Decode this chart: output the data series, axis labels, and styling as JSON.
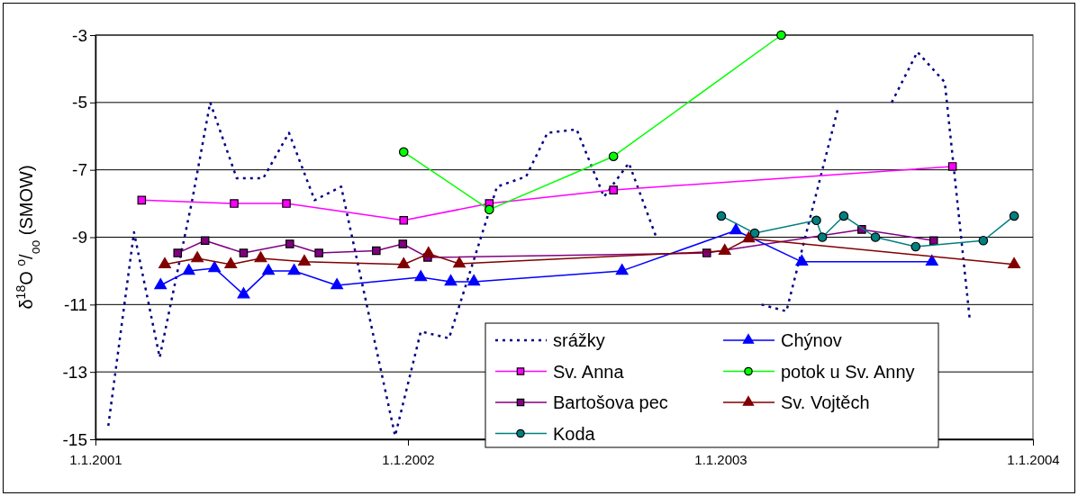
{
  "chart_data": {
    "type": "line",
    "ylabel": "δ$^{18}$O $^{o}$/$_{oo}$ (SMOW)",
    "xlim": [
      "2001-01-01",
      "2004-01-01"
    ],
    "xticks": [
      {
        "value": "2001-01-01",
        "label": "1.1.2001"
      },
      {
        "value": "2002-01-01",
        "label": "1.1.2002"
      },
      {
        "value": "2003-01-01",
        "label": "1.1.2003"
      },
      {
        "value": "2004-01-01",
        "label": "1.1.2004"
      }
    ],
    "ylim": [
      -15,
      -3
    ],
    "yticks": [
      -15,
      -13,
      -11,
      -9,
      -7,
      -5,
      -3
    ],
    "grid": "y",
    "legend": "bottom right",
    "series": [
      {
        "name": "srážky",
        "color": "#000080",
        "marker": "none",
        "line_style": "dotted",
        "x": [
          "2001-01-16",
          "2001-02-15",
          "2001-03-17",
          "2001-04-24",
          "2001-05-15",
          "2001-06-15",
          "2001-07-16",
          "2001-08-15",
          "2001-09-14",
          "2001-10-15",
          "2001-12-17",
          "2002-01-16",
          "2002-02-18",
          "2002-04-15",
          "2002-05-19",
          "2002-06-13",
          "2002-07-17",
          "2002-08-18",
          "2002-09-16",
          "2002-10-18",
          "2002-12-01",
          "2003-02-18",
          "2003-03-19",
          "2003-05-19",
          "2003-06-20",
          "2003-07-20",
          "2003-08-19",
          "2003-09-20",
          "2003-10-19"
        ],
        "values": [
          -14.6,
          -8.85,
          -12.57,
          -7.9,
          -5.0,
          -7.25,
          -7.25,
          -5.9,
          -7.9,
          -7.5,
          -14.9,
          -11.8,
          -12.0,
          -7.5,
          -7.2,
          -5.9,
          -5.8,
          -7.8,
          -6.8,
          -9.0,
          null,
          -11.0,
          -11.2,
          -5.1,
          null,
          -5.0,
          -3.5,
          -4.4,
          -11.4
        ]
      },
      {
        "name": "Sv. Anna",
        "color": "#ff00ff",
        "marker": "square",
        "x": [
          "2001-02-24",
          "2001-06-12",
          "2001-08-12",
          "2001-12-27",
          "2002-04-06",
          "2002-08-29",
          "2003-09-29"
        ],
        "values": [
          -7.9,
          -8.0,
          -8.0,
          -8.5,
          -8.0,
          -7.6,
          -6.9
        ]
      },
      {
        "name": "Bartošova pec",
        "color": "#800080",
        "marker": "square",
        "x": [
          "2001-04-07",
          "2001-05-09",
          "2001-06-23",
          "2001-08-16",
          "2001-09-19",
          "2001-11-25",
          "2001-12-26",
          "2002-01-24",
          "2002-12-16",
          "2003-06-15",
          "2003-09-07"
        ],
        "values": [
          -9.47,
          -9.1,
          -9.47,
          -9.2,
          -9.47,
          -9.4,
          -9.2,
          -9.6,
          -9.47,
          -8.77,
          -9.1
        ]
      },
      {
        "name": "Koda",
        "color": "#008080",
        "marker": "circle",
        "x": [
          "2003-01-02",
          "2003-02-10",
          "2003-04-23",
          "2003-04-30",
          "2003-05-25",
          "2003-07-01",
          "2003-08-17",
          "2003-11-04",
          "2003-12-10"
        ],
        "values": [
          -8.37,
          -8.88,
          -8.5,
          -9.0,
          -8.37,
          -9.0,
          -9.28,
          -9.1,
          -8.37
        ]
      },
      {
        "name": "Chýnov",
        "color": "#0000ff",
        "marker": "triangle",
        "x": [
          "2001-03-18",
          "2001-04-20",
          "2001-05-20",
          "2001-06-23",
          "2001-07-22",
          "2001-08-21",
          "2001-10-10",
          "2002-01-16",
          "2002-02-20",
          "2002-03-19",
          "2002-09-08",
          "2003-01-19",
          "2003-04-06",
          "2003-09-05"
        ],
        "values": [
          -10.43,
          -10.0,
          -9.92,
          -10.7,
          -10.0,
          -10.0,
          -10.43,
          -10.19,
          -10.32,
          -10.32,
          -10.0,
          -8.8,
          -9.73,
          -9.73
        ]
      },
      {
        "name": "potok u Sv. Anny",
        "color": "#00ff00",
        "marker": "circle",
        "x": [
          "2001-12-27",
          "2002-04-06",
          "2002-08-29",
          "2003-03-13"
        ],
        "values": [
          -6.47,
          -8.18,
          -6.6,
          -3.0
        ]
      },
      {
        "name": "Sv. Vojtěch",
        "color": "#800000",
        "marker": "triangle",
        "x": [
          "2001-03-23",
          "2001-04-30",
          "2001-06-08",
          "2001-07-13",
          "2001-09-02",
          "2001-12-27",
          "2002-01-25",
          "2002-03-02",
          "2003-01-06",
          "2003-02-03",
          "2003-12-10"
        ],
        "values": [
          -9.81,
          -9.63,
          -9.81,
          -9.63,
          -9.73,
          -9.81,
          -9.49,
          -9.79,
          -9.41,
          -9.04,
          -9.81
        ]
      }
    ]
  }
}
